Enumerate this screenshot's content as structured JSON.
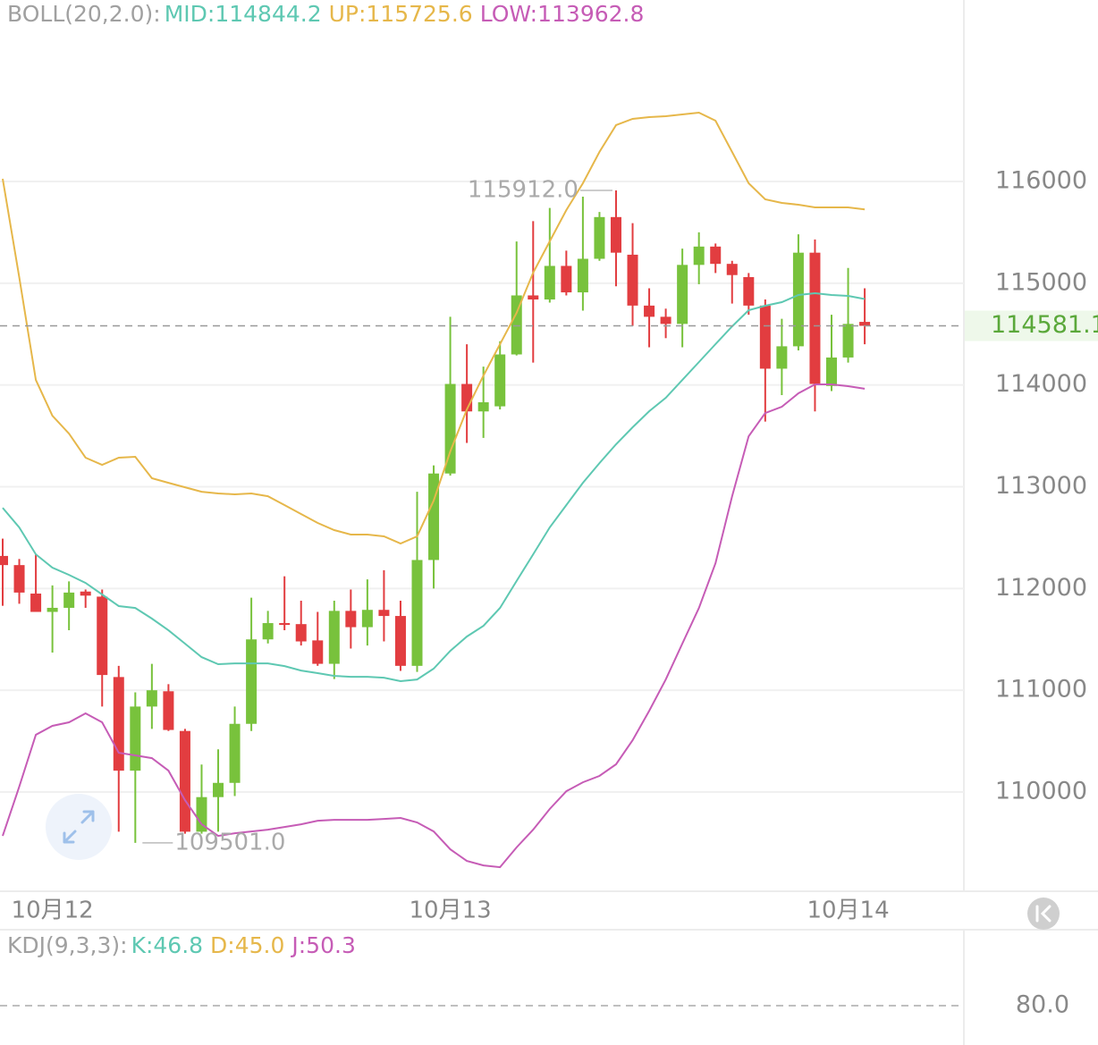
{
  "chart_data": {
    "type": "candlestick",
    "title": "BOLL(20,2.0):",
    "categories": [
      null,
      null,
      null,
      "10月12",
      null,
      null,
      null,
      null,
      null,
      null,
      null,
      null,
      null,
      null,
      null,
      null,
      null,
      null,
      null,
      null,
      null,
      null,
      null,
      null,
      null,
      null,
      null,
      "10月13",
      null,
      null,
      null,
      null,
      null,
      null,
      null,
      null,
      null,
      null,
      null,
      null,
      null,
      null,
      null,
      null,
      null,
      null,
      null,
      null,
      null,
      null,
      null,
      "10月14",
      null
    ],
    "open": [
      112320,
      112230,
      111950,
      111770,
      111810,
      111970,
      111920,
      111130,
      110210,
      110840,
      110990,
      110600,
      109610,
      109950,
      110090,
      110670,
      111500,
      111660,
      111650,
      111490,
      111260,
      111780,
      111620,
      111790,
      111730,
      111240,
      112280,
      113130,
      114010,
      113740,
      113790,
      114300,
      114880,
      114840,
      115170,
      114910,
      115240,
      115650,
      115280,
      114780,
      114670,
      114600,
      115180,
      115360,
      115190,
      115060,
      114780,
      114160,
      114380,
      115300,
      113990,
      114270,
      114620
    ],
    "high": [
      112490,
      112290,
      112340,
      112030,
      112070,
      111990,
      111990,
      111240,
      110980,
      111260,
      111060,
      110620,
      110270,
      110420,
      110840,
      111910,
      111780,
      112120,
      111880,
      111770,
      111880,
      111990,
      112090,
      112180,
      111880,
      112950,
      113210,
      114670,
      114400,
      114180,
      114430,
      115410,
      115610,
      115740,
      115320,
      115850,
      115700,
      115912,
      115590,
      114950,
      114750,
      115340,
      115500,
      115390,
      115220,
      115100,
      114840,
      114650,
      115480,
      115430,
      114690,
      115150,
      114950
    ],
    "low": [
      111830,
      111850,
      111770,
      111370,
      111590,
      111810,
      110840,
      109610,
      109501,
      110620,
      110600,
      109590,
      109590,
      109610,
      109960,
      110600,
      111460,
      111590,
      111440,
      111240,
      111110,
      111410,
      111440,
      111480,
      111190,
      111180,
      112000,
      113110,
      113430,
      113480,
      113760,
      114290,
      114220,
      114810,
      114880,
      114730,
      115220,
      114970,
      114580,
      114370,
      114460,
      114370,
      114990,
      115100,
      114800,
      114690,
      113640,
      113900,
      114340,
      113740,
      113940,
      114220,
      114400
    ],
    "close": [
      112230,
      111960,
      111770,
      111810,
      111960,
      111930,
      111150,
      110210,
      110840,
      111000,
      110610,
      109610,
      109950,
      110090,
      110670,
      111500,
      111660,
      111650,
      111480,
      111260,
      111780,
      111620,
      111790,
      111730,
      111240,
      112280,
      113130,
      114010,
      113740,
      113830,
      114300,
      114880,
      114840,
      115170,
      114910,
      115240,
      115650,
      115300,
      114780,
      114670,
      114600,
      115180,
      115360,
      115190,
      115080,
      114780,
      114160,
      114380,
      115300,
      114010,
      114270,
      114600,
      114581.1
    ],
    "up_color": "#78c23c",
    "down_color": "#e23d40",
    "high_label": "115912.0",
    "low_label": "109501.0",
    "series": [
      {
        "name": "MID:114844.2",
        "color": "#5ec8b2",
        "values": [
          112793,
          112600,
          112336,
          112205,
          112134,
          112055,
          111941,
          111827,
          111809,
          111704,
          111589,
          111458,
          111326,
          111256,
          111264,
          111264,
          111264,
          111238,
          111194,
          111168,
          111141,
          111132,
          111132,
          111124,
          111089,
          111106,
          111212,
          111387,
          111528,
          111633,
          111809,
          112073,
          112336,
          112600,
          112820,
          113039,
          113232,
          113417,
          113584,
          113742,
          113874,
          114049,
          114225,
          114401,
          114576,
          114735,
          114779,
          114814,
          114884,
          114902,
          114884,
          114875,
          114844.2
        ]
      },
      {
        "name": "UP:115725.6",
        "color": "#e6b74a",
        "values": [
          116026,
          115060,
          114049,
          113698,
          113522,
          113285,
          113215,
          113285,
          113294,
          113083,
          113039,
          112995,
          112951,
          112934,
          112925,
          112934,
          112907,
          112820,
          112732,
          112644,
          112574,
          112530,
          112530,
          112512,
          112442,
          112512,
          112863,
          113347,
          113759,
          114093,
          114401,
          114708,
          115104,
          115411,
          115719,
          115982,
          116290,
          116553,
          116615,
          116632,
          116641,
          116659,
          116676,
          116597,
          116290,
          115982,
          115824,
          115789,
          115771,
          115745,
          115745,
          115745,
          115725.6
        ]
      },
      {
        "name": "LOW:113962.8",
        "color": "#c65cb6",
        "values": [
          109569,
          110052,
          110562,
          110650,
          110685,
          110773,
          110685,
          110386,
          110360,
          110333,
          110210,
          109920,
          109683,
          109569,
          109595,
          109613,
          109630,
          109657,
          109683,
          109718,
          109727,
          109727,
          109727,
          109736,
          109745,
          109701,
          109613,
          109437,
          109323,
          109279,
          109261,
          109455,
          109630,
          109833,
          110008,
          110096,
          110158,
          110272,
          110509,
          110799,
          111106,
          111458,
          111809,
          112248,
          112907,
          113496,
          113724,
          113786,
          113918,
          114006,
          114006,
          113988,
          113962.8
        ]
      }
    ],
    "ylim": [
      109025,
      117783
    ],
    "yticks": [
      110000,
      111000,
      112000,
      113000,
      114000,
      115000,
      116000
    ],
    "grid": true,
    "kdj": {
      "title": "KDJ(9,3,3):",
      "labels": [
        {
          "text": "K:46.8",
          "color": "#5ec8b2"
        },
        {
          "text": "D:45.0",
          "color": "#e6b74a"
        },
        {
          "text": "J:50.3",
          "color": "#c65cb6"
        }
      ],
      "ylim": [
        0,
        100
      ],
      "yticks": [
        {
          "value": 80,
          "label": "80.0"
        }
      ]
    }
  }
}
